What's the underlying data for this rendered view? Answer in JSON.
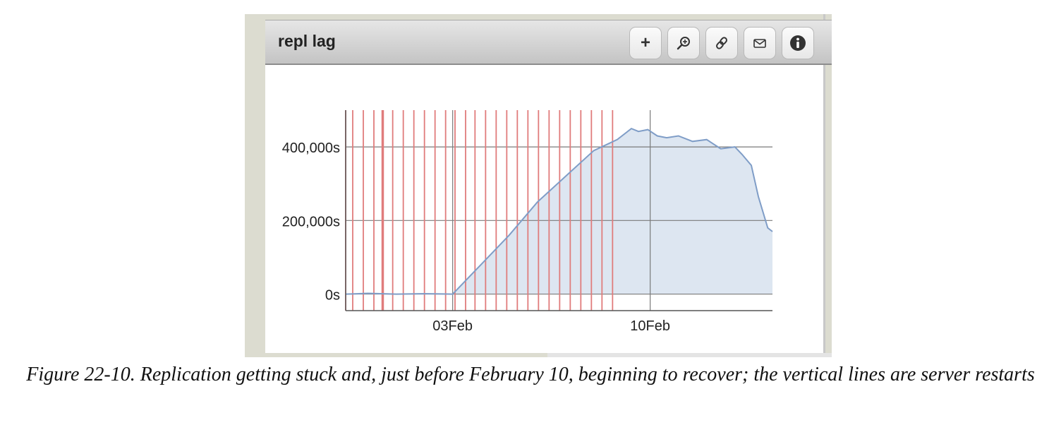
{
  "panel": {
    "title": "repl lag",
    "toolbar": [
      {
        "icon": "plus-icon",
        "glyph": "+"
      },
      {
        "icon": "zoom-icon"
      },
      {
        "icon": "link-icon"
      },
      {
        "icon": "mail-icon"
      },
      {
        "icon": "info-icon"
      }
    ]
  },
  "chart_data": {
    "type": "area",
    "title": "repl lag",
    "xlabel": "",
    "ylabel": "",
    "x_ticks": [
      "03Feb",
      "10Feb"
    ],
    "y_ticks": [
      "0s",
      "200,000s",
      "400,000s"
    ],
    "x_range": [
      "2012-01-30T05:00",
      "2012-02-14T08:00"
    ],
    "ylim": [
      -45000,
      500000
    ],
    "grid": true,
    "colors": {
      "area": "#dde6f1",
      "line": "#7f9dc7",
      "restart": "#e07c7c",
      "grid": "#7a7a7a"
    },
    "series": [
      {
        "x": [
          "2012-01-30T05:00",
          "2012-01-31T00:00",
          "2012-02-01T00:00",
          "2012-02-02T00:00",
          "2012-02-03T00:00",
          "2012-02-04T00:00",
          "2012-02-05T00:00",
          "2012-02-06T00:00",
          "2012-02-07T00:00",
          "2012-02-08T00:00",
          "2012-02-08T20:00",
          "2012-02-09T08:00",
          "2012-02-09T14:00",
          "2012-02-09T22:00",
          "2012-02-10T06:00",
          "2012-02-10T14:00",
          "2012-02-11T00:00",
          "2012-02-11T12:00",
          "2012-02-12T00:00",
          "2012-02-12T12:00",
          "2012-02-13T00:00",
          "2012-02-13T06:00",
          "2012-02-13T14:00",
          "2012-02-13T20:00",
          "2012-02-14T04:00",
          "2012-02-14T08:00"
        ],
        "y": [
          0,
          2000,
          0,
          1000,
          0,
          80000,
          160000,
          250000,
          320000,
          390000,
          420000,
          450000,
          442000,
          447000,
          430000,
          425000,
          430000,
          415000,
          420000,
          395000,
          400000,
          380000,
          350000,
          265000,
          180000,
          170000
        ]
      }
    ],
    "restarts": [
      "2012-01-30T05:00",
      "2012-01-30T11:00",
      "2012-01-30T20:00",
      "2012-01-31T05:00",
      "2012-01-31T12:00",
      "2012-01-31T13:00",
      "2012-01-31T21:00",
      "2012-02-01T06:00",
      "2012-02-01T15:00",
      "2012-02-02T00:00",
      "2012-02-02T09:00",
      "2012-02-02T18:00",
      "2012-02-03T02:00",
      "2012-02-03T11:00",
      "2012-02-03T19:00",
      "2012-02-04T04:00",
      "2012-02-04T13:00",
      "2012-02-04T22:00",
      "2012-02-05T07:00",
      "2012-02-05T16:00",
      "2012-02-06T01:00",
      "2012-02-06T10:00",
      "2012-02-06T19:00",
      "2012-02-07T04:00",
      "2012-02-07T13:00",
      "2012-02-07T22:00",
      "2012-02-08T07:00",
      "2012-02-08T16:00"
    ]
  },
  "caption": "Figure 22-10. Replication getting stuck and, just before February 10, beginning to recover; the vertical lines are server restarts"
}
